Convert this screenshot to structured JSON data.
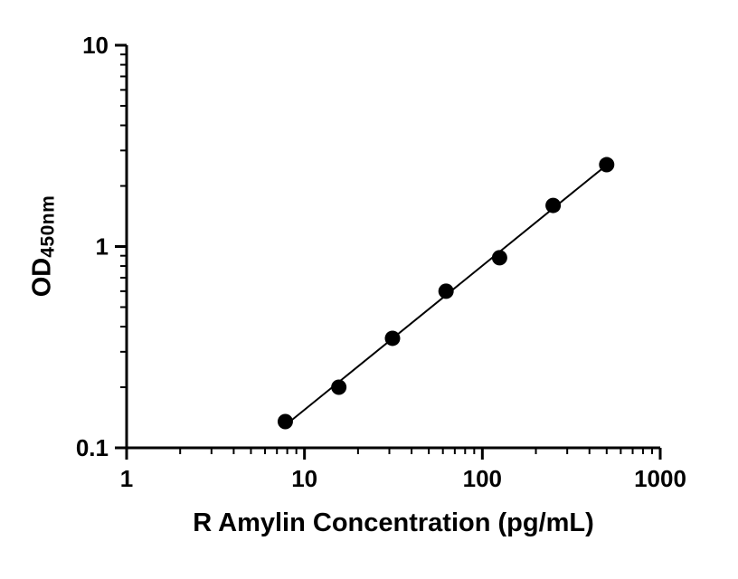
{
  "figure": {
    "background": "#ffffff"
  },
  "chart_data": {
    "type": "scatter",
    "title": "",
    "xlabel": "R Amylin Concentration (pg/mL)",
    "ylabel_main": "OD",
    "ylabel_sub": "450nm",
    "x_scale": "log",
    "y_scale": "log",
    "xlim": [
      1,
      1000
    ],
    "ylim": [
      0.1,
      10
    ],
    "x_ticks": [
      1,
      10,
      100,
      1000
    ],
    "x_tick_labels": [
      "1",
      "10",
      "100",
      "1000"
    ],
    "y_ticks": [
      0.1,
      1,
      10
    ],
    "y_tick_labels": [
      "0.1",
      "1",
      "10"
    ],
    "x": [
      7.8,
      15.6,
      31.25,
      62.5,
      125,
      250,
      500
    ],
    "series": [
      {
        "name": "OD450nm",
        "values": [
          0.135,
          0.2,
          0.35,
          0.6,
          0.88,
          1.6,
          2.55
        ]
      }
    ],
    "trendline": "linear-loglog",
    "marker_color": "#000000",
    "line_color": "#000000",
    "axis_color": "#000000",
    "grid": false,
    "legend": false
  }
}
